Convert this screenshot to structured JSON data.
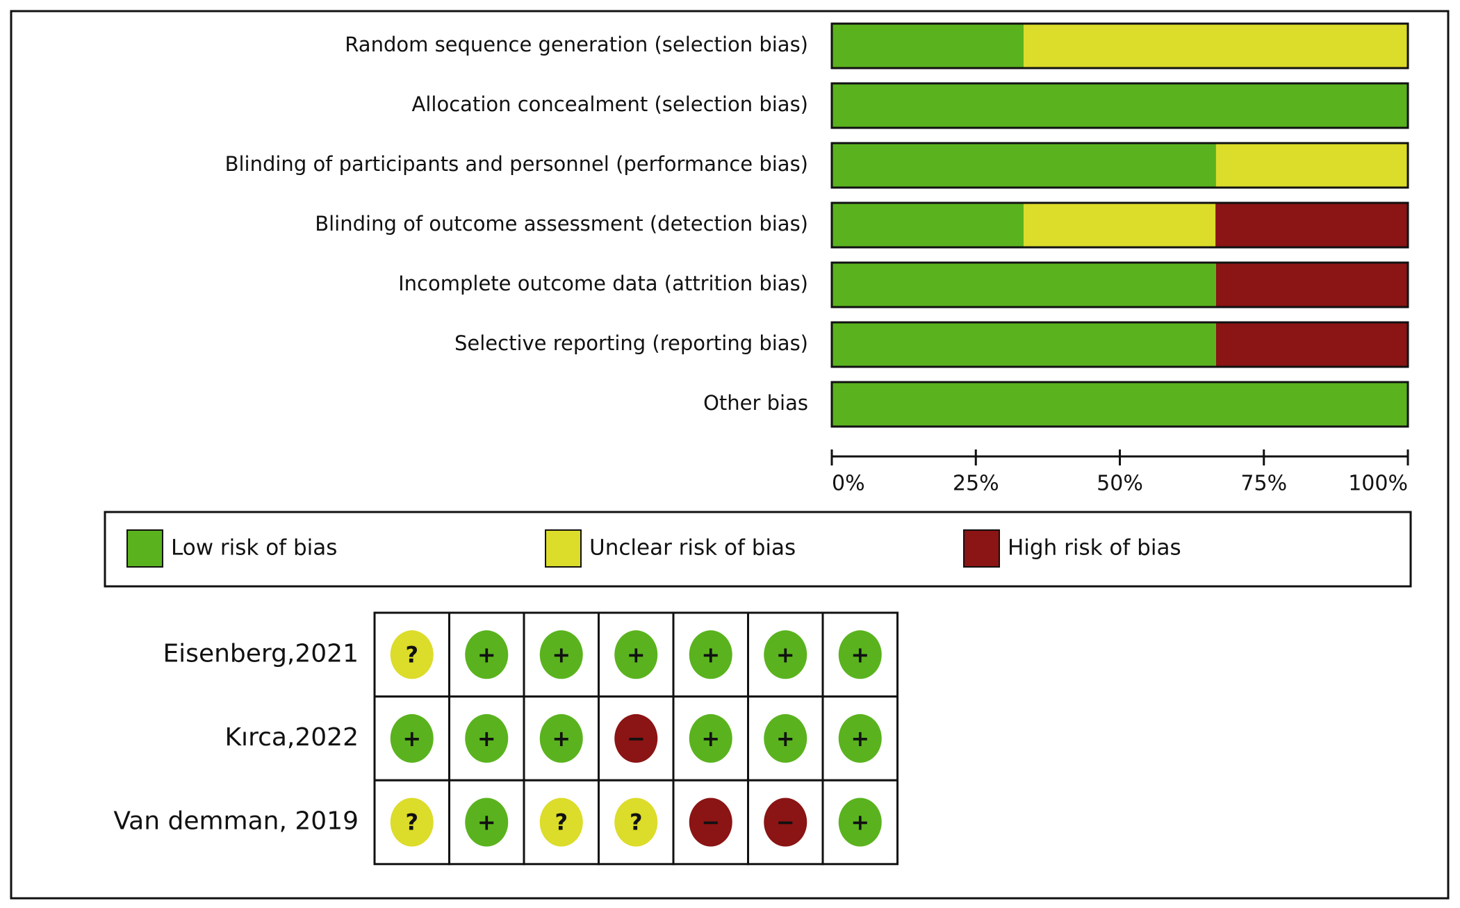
{
  "chart_data": {
    "type": "stacked-bar-horizontal",
    "categories": [
      "Random sequence generation (selection bias)",
      "Allocation concealment (selection bias)",
      "Blinding of participants and personnel (performance bias)",
      "Blinding of outcome assessment (detection bias)",
      "Incomplete outcome data (attrition bias)",
      "Selective reporting (reporting bias)",
      "Other bias"
    ],
    "series": [
      {
        "name": "Low risk of bias",
        "color": "#5ab31e",
        "values": [
          33.3,
          100,
          66.7,
          33.3,
          66.7,
          66.7,
          100
        ]
      },
      {
        "name": "Unclear risk of bias",
        "color": "#dcdc2a",
        "values": [
          66.7,
          0,
          33.3,
          33.3,
          0,
          0,
          0
        ]
      },
      {
        "name": "High risk of bias",
        "color": "#8b1414",
        "values": [
          0,
          0,
          0,
          33.3,
          33.3,
          33.3,
          0
        ]
      }
    ],
    "xlim": [
      0,
      100
    ],
    "xticks": [
      {
        "value": 0,
        "label": "0%"
      },
      {
        "value": 25,
        "label": "25%"
      },
      {
        "value": 50,
        "label": "50%"
      },
      {
        "value": 75,
        "label": "75%"
      },
      {
        "value": 100,
        "label": "100%"
      }
    ]
  },
  "table": {
    "rows": [
      {
        "study": "Eisenberg,2021",
        "cells": [
          {
            "text": "?",
            "color": "#dcdc2a"
          },
          {
            "text": "+",
            "color": "#5ab31e"
          },
          {
            "text": "+",
            "color": "#5ab31e"
          },
          {
            "text": "+",
            "color": "#5ab31e"
          },
          {
            "text": "+",
            "color": "#5ab31e"
          },
          {
            "text": "+",
            "color": "#5ab31e"
          },
          {
            "text": "+",
            "color": "#5ab31e"
          }
        ]
      },
      {
        "study": "Kırca,2022",
        "cells": [
          {
            "text": "+",
            "color": "#5ab31e"
          },
          {
            "text": "+",
            "color": "#5ab31e"
          },
          {
            "text": "+",
            "color": "#5ab31e"
          },
          {
            "text": "−",
            "color": "#8b1414"
          },
          {
            "text": "+",
            "color": "#5ab31e"
          },
          {
            "text": "+",
            "color": "#5ab31e"
          },
          {
            "text": "+",
            "color": "#5ab31e"
          }
        ]
      },
      {
        "study": "Van demman, 2019",
        "cells": [
          {
            "text": "?",
            "color": "#dcdc2a"
          },
          {
            "text": "+",
            "color": "#5ab31e"
          },
          {
            "text": "?",
            "color": "#dcdc2a"
          },
          {
            "text": "?",
            "color": "#dcdc2a"
          },
          {
            "text": "−",
            "color": "#8b1414"
          },
          {
            "text": "−",
            "color": "#8b1414"
          },
          {
            "text": "+",
            "color": "#5ab31e"
          }
        ]
      }
    ]
  }
}
